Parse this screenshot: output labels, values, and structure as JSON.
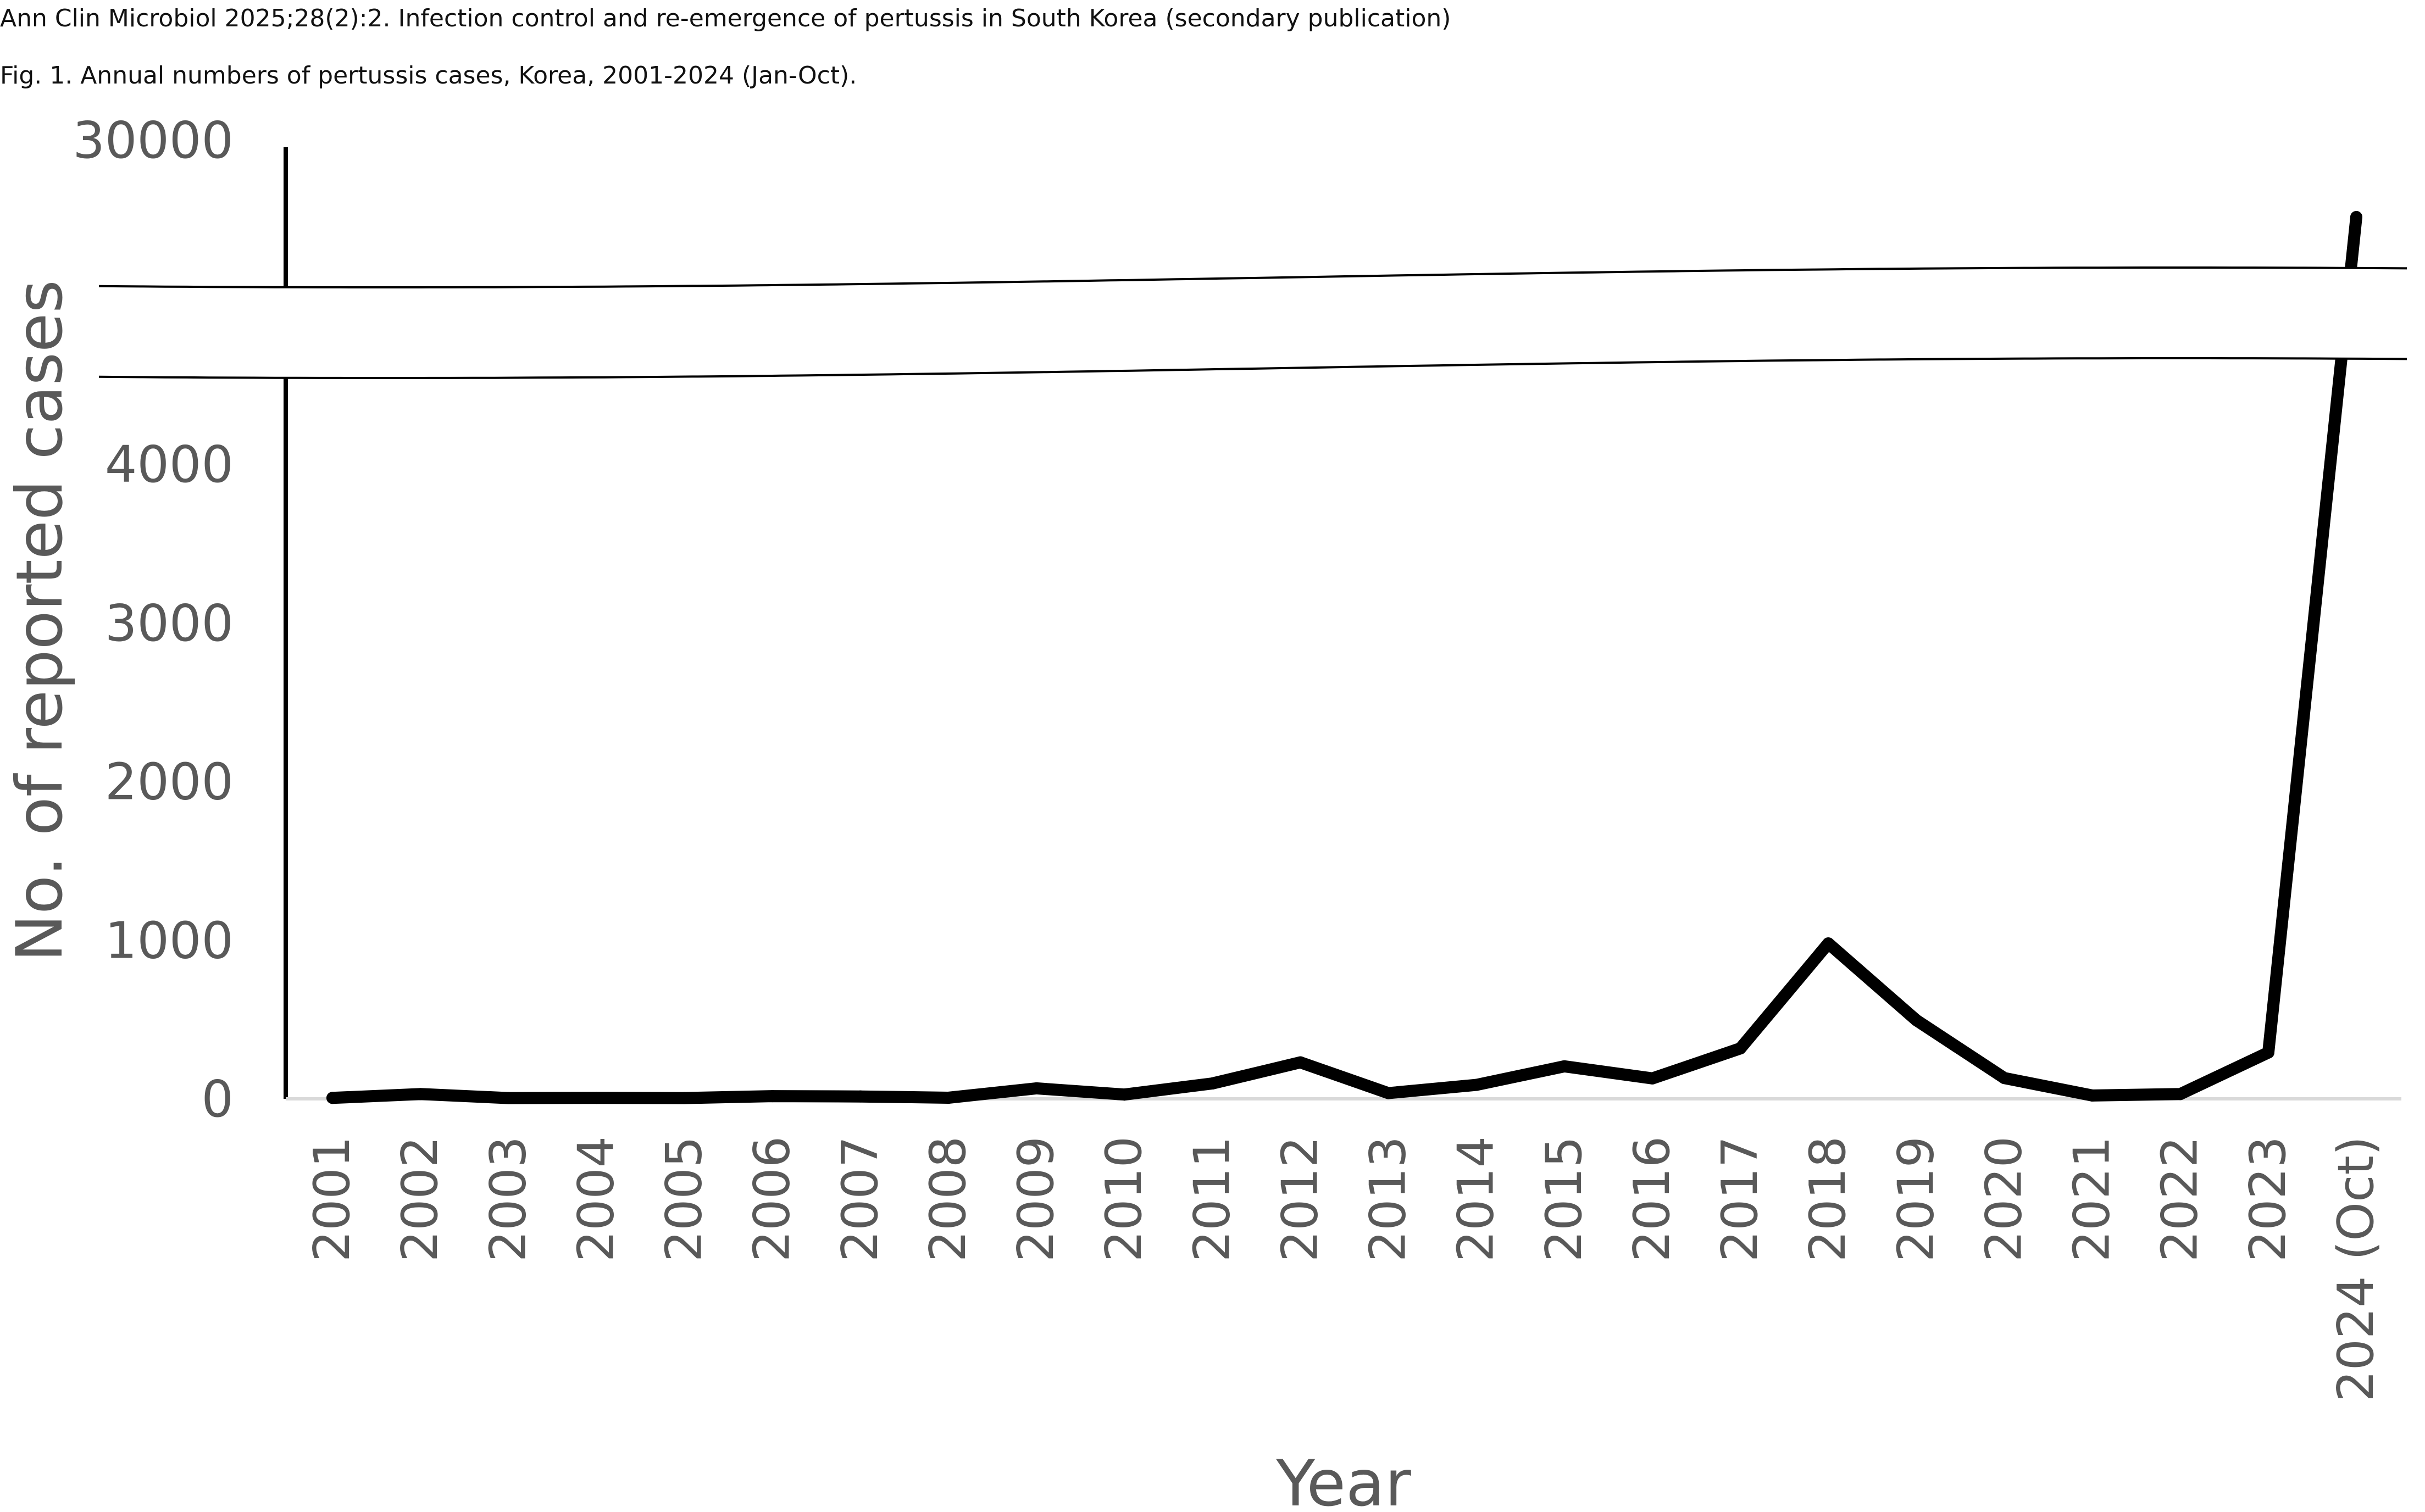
{
  "header": {
    "citation": "Ann Clin Microbiol 2025;28(2):2. Infection control and re-emergence of pertussis in South Korea (secondary publication)",
    "figure_caption": "Fig. 1. Annual numbers of pertussis cases, Korea, 2001-2024 (Jan-Oct)."
  },
  "chart_data": {
    "type": "line",
    "title": "",
    "xlabel": "Year",
    "ylabel": "No. of reported cases",
    "categories": [
      "2001",
      "2002",
      "2003",
      "2004",
      "2005",
      "2006",
      "2007",
      "2008",
      "2009",
      "2010",
      "2011",
      "2012",
      "2013",
      "2014",
      "2015",
      "2016",
      "2017",
      "2018",
      "2019",
      "2020",
      "2021",
      "2022",
      "2023",
      "2024 (Oct)"
    ],
    "series": [
      {
        "values": [
          6,
          30,
          5,
          6,
          5,
          17,
          15,
          7,
          66,
          27,
          97,
          230,
          36,
          88,
          205,
          129,
          318,
          980,
          496,
          131,
          21,
          30,
          292,
          27000
        ]
      }
    ],
    "y_ticks": [
      "0",
      "1000",
      "2000",
      "3000",
      "4000",
      "30000"
    ],
    "ylim": [
      0,
      30000
    ],
    "axis_break": {
      "from": 4500,
      "to": 24000
    },
    "grid": false,
    "legend": "none",
    "line_color": "#000000"
  }
}
